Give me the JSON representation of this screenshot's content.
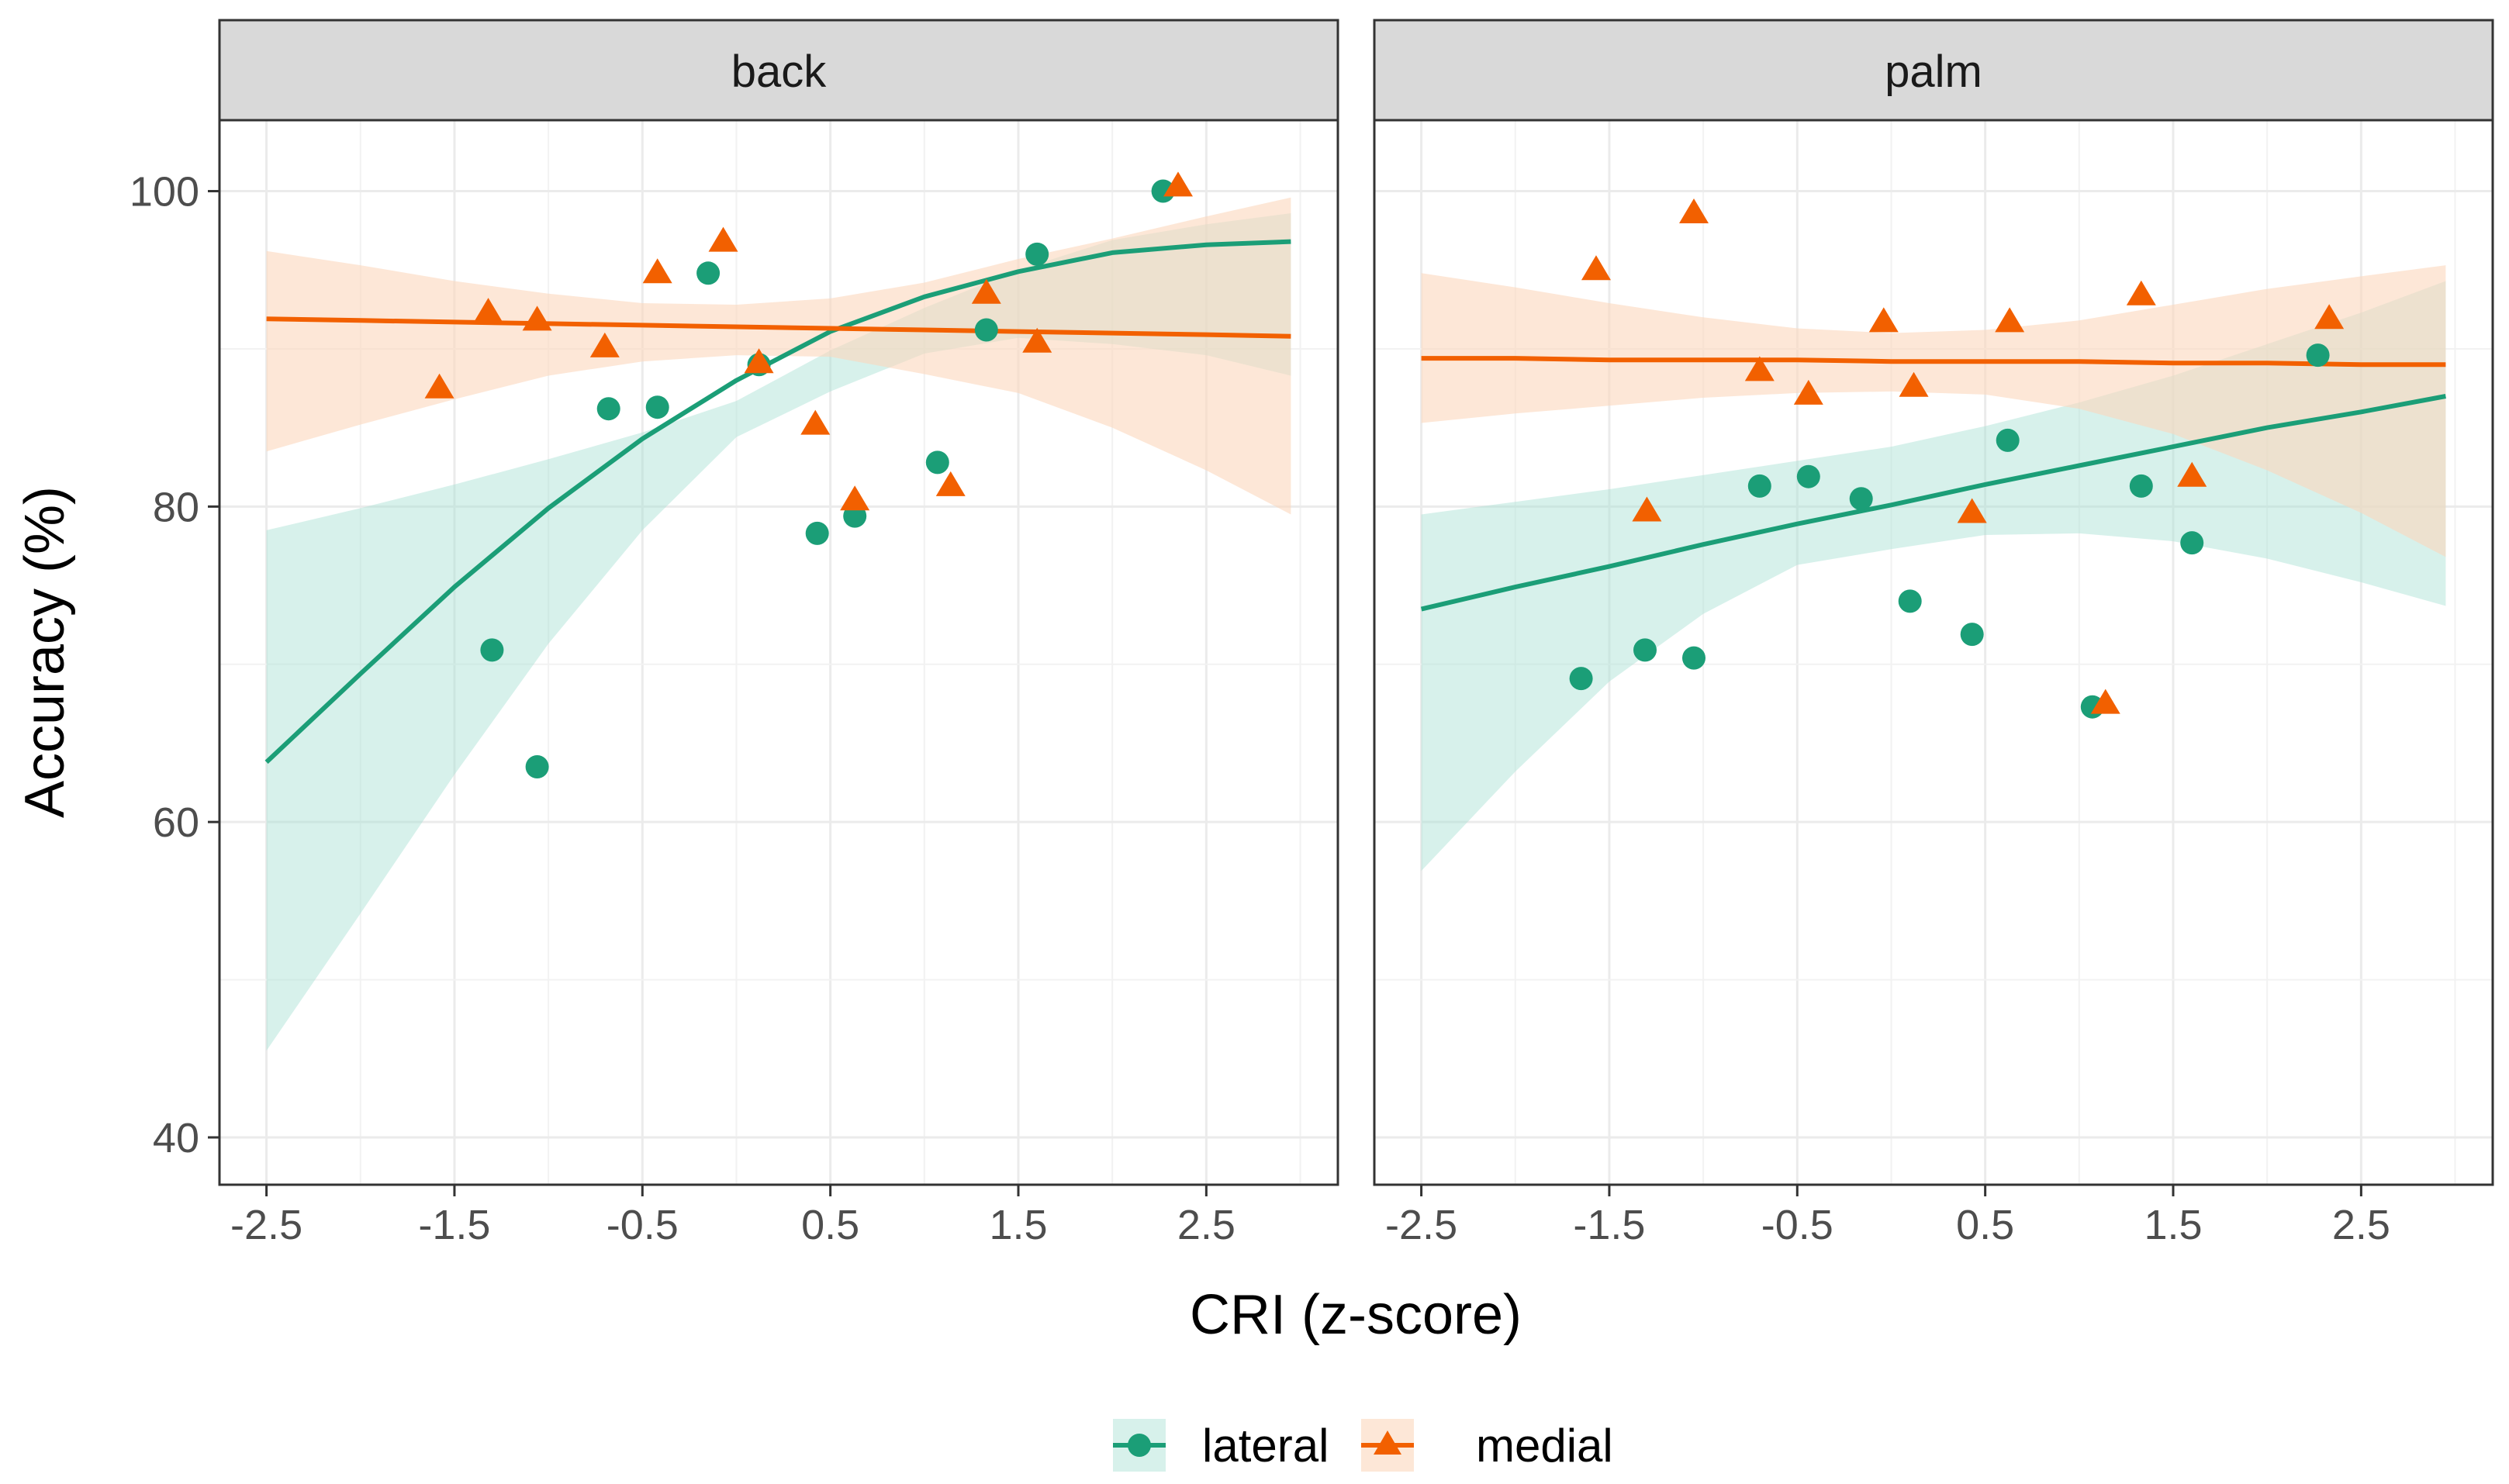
{
  "chart_data": {
    "type": "scatter",
    "xlabel": "CRI (z-score)",
    "ylabel": "Accuracy (%)",
    "xlim": [
      -2.75,
      3.2
    ],
    "ylim": [
      37,
      104.5
    ],
    "x_ticks": [
      -2.5,
      -1.5,
      -0.5,
      0.5,
      1.5,
      2.5
    ],
    "x_tick_labels": [
      "-2.5",
      "-1.5",
      "-0.5",
      "0.5",
      "1.5",
      "2.5"
    ],
    "y_ticks": [
      40,
      60,
      80,
      100
    ],
    "y_tick_labels": [
      "40",
      "60",
      "80",
      "100"
    ],
    "grid": true,
    "legend": {
      "position": "bottom",
      "entries": [
        {
          "label": "lateral",
          "color": "#1B9E77",
          "shape": "circle"
        },
        {
          "label": "medial",
          "color": "#F26000",
          "shape": "triangle"
        }
      ]
    },
    "panels": [
      {
        "title": "back",
        "series": [
          {
            "name": "lateral",
            "color": "#1B9E77",
            "fill": "#A6E1D2",
            "points": [
              [
                -1.3,
                70.9
              ],
              [
                -1.06,
                63.5
              ],
              [
                -0.68,
                86.2
              ],
              [
                -0.42,
                86.3
              ],
              [
                -0.15,
                94.8
              ],
              [
                0.12,
                89.0
              ],
              [
                0.43,
                78.3
              ],
              [
                0.63,
                79.4
              ],
              [
                1.07,
                82.8
              ],
              [
                1.33,
                91.2
              ],
              [
                1.6,
                96.0
              ],
              [
                2.27,
                100.0
              ]
            ],
            "fit": {
              "x": [
                -2.5,
                -2.0,
                -1.5,
                -1.0,
                -0.5,
                0.0,
                0.5,
                1.0,
                1.5,
                2.0,
                2.5,
                2.95
              ],
              "y": [
                63.8,
                69.4,
                74.9,
                79.9,
                84.3,
                88.0,
                91.1,
                93.3,
                94.9,
                96.1,
                96.6,
                96.8
              ],
              "upper": [
                78.5,
                79.9,
                81.4,
                83.0,
                84.7,
                86.7,
                89.9,
                92.6,
                95.0,
                96.9,
                97.9,
                98.6
              ],
              "lower": [
                45.5,
                54.2,
                63.0,
                71.3,
                78.5,
                84.4,
                87.3,
                89.7,
                90.7,
                90.3,
                89.6,
                88.3
              ]
            }
          },
          {
            "name": "medial",
            "color": "#F26000",
            "fill": "#FCD7BD",
            "points": [
              [
                -1.58,
                87.5
              ],
              [
                -1.32,
                92.3
              ],
              [
                -1.06,
                91.8
              ],
              [
                -0.7,
                90.1
              ],
              [
                -0.42,
                94.8
              ],
              [
                -0.07,
                96.8
              ],
              [
                0.12,
                89.1
              ],
              [
                0.42,
                85.2
              ],
              [
                0.63,
                80.4
              ],
              [
                1.14,
                81.3
              ],
              [
                1.33,
                93.5
              ],
              [
                1.6,
                90.4
              ],
              [
                2.35,
                100.3
              ]
            ],
            "fit": {
              "x": [
                -2.5,
                -2.0,
                -1.5,
                -1.0,
                -0.5,
                0.0,
                0.5,
                1.0,
                1.5,
                2.0,
                2.5,
                2.95
              ],
              "y": [
                91.9,
                91.8,
                91.7,
                91.6,
                91.5,
                91.4,
                91.3,
                91.2,
                91.1,
                91.0,
                90.9,
                90.8
              ],
              "upper": [
                96.2,
                95.3,
                94.3,
                93.5,
                92.9,
                92.8,
                93.2,
                94.2,
                95.7,
                97.0,
                98.4,
                99.6
              ],
              "lower": [
                83.5,
                85.2,
                86.8,
                88.3,
                89.2,
                89.6,
                89.5,
                88.4,
                87.2,
                85.0,
                82.3,
                79.5
              ]
            }
          }
        ]
      },
      {
        "title": "palm",
        "series": [
          {
            "name": "lateral",
            "color": "#1B9E77",
            "fill": "#A6E1D2",
            "points": [
              [
                -1.65,
                69.1
              ],
              [
                -1.31,
                70.9
              ],
              [
                -1.05,
                70.4
              ],
              [
                -0.7,
                81.3
              ],
              [
                -0.44,
                81.9
              ],
              [
                -0.16,
                80.5
              ],
              [
                0.1,
                74.0
              ],
              [
                0.43,
                71.9
              ],
              [
                0.62,
                84.2
              ],
              [
                1.07,
                67.3
              ],
              [
                1.33,
                81.3
              ],
              [
                1.6,
                77.7
              ],
              [
                2.27,
                89.6
              ]
            ],
            "fit": {
              "x": [
                -2.5,
                -2.0,
                -1.5,
                -1.0,
                -0.5,
                0.0,
                0.5,
                1.0,
                1.5,
                2.0,
                2.5,
                2.95
              ],
              "y": [
                73.5,
                74.9,
                76.2,
                77.6,
                78.9,
                80.1,
                81.4,
                82.6,
                83.8,
                85.0,
                86.0,
                87.0
              ],
              "upper": [
                79.5,
                80.3,
                81.1,
                82.0,
                82.9,
                83.8,
                85.1,
                86.6,
                88.3,
                90.3,
                92.3,
                94.3
              ],
              "lower": [
                56.9,
                63.2,
                68.9,
                73.2,
                76.3,
                77.3,
                78.2,
                78.3,
                77.8,
                76.7,
                75.2,
                73.7
              ]
            }
          },
          {
            "name": "medial",
            "color": "#F26000",
            "fill": "#FCD7BD",
            "points": [
              [
                -1.57,
                95.0
              ],
              [
                -1.3,
                79.7
              ],
              [
                -1.05,
                98.6
              ],
              [
                -0.7,
                88.6
              ],
              [
                -0.44,
                87.1
              ],
              [
                -0.04,
                91.7
              ],
              [
                0.12,
                87.6
              ],
              [
                0.43,
                79.6
              ],
              [
                0.63,
                91.7
              ],
              [
                1.14,
                67.5
              ],
              [
                1.33,
                93.4
              ],
              [
                1.6,
                81.9
              ],
              [
                2.33,
                91.9
              ]
            ],
            "fit": {
              "x": [
                -2.5,
                -2.0,
                -1.5,
                -1.0,
                -0.5,
                0.0,
                0.5,
                1.0,
                1.5,
                2.0,
                2.5,
                2.95
              ],
              "y": [
                89.4,
                89.4,
                89.3,
                89.3,
                89.3,
                89.2,
                89.2,
                89.2,
                89.1,
                89.1,
                89.0,
                89.0
              ],
              "upper": [
                94.8,
                93.9,
                92.9,
                92.0,
                91.3,
                91.0,
                91.2,
                91.8,
                92.8,
                93.8,
                94.6,
                95.3
              ],
              "lower": [
                85.3,
                85.9,
                86.4,
                86.9,
                87.2,
                87.3,
                87.1,
                86.2,
                84.6,
                82.3,
                79.6,
                76.8
              ]
            }
          }
        ]
      }
    ]
  }
}
